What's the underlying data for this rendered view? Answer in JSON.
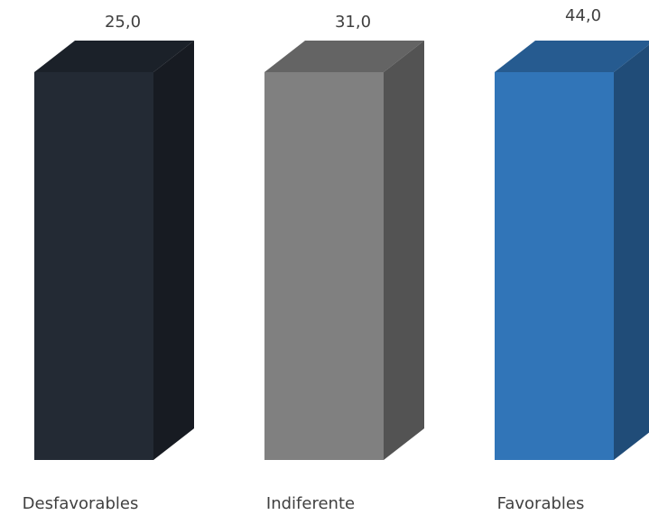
{
  "chart_data": {
    "type": "bar",
    "style": "3d-column",
    "categories": [
      "Desfavorables",
      "Indiferente",
      "Favorables"
    ],
    "values": [
      25.0,
      31.0,
      44.0
    ],
    "value_labels": [
      "25,0",
      "31,0",
      "44,0"
    ],
    "colors": [
      "#232a34",
      "#808080",
      "#3175b8"
    ],
    "title": "",
    "xlabel": "",
    "ylabel": "",
    "grid": false,
    "legend": "none"
  }
}
